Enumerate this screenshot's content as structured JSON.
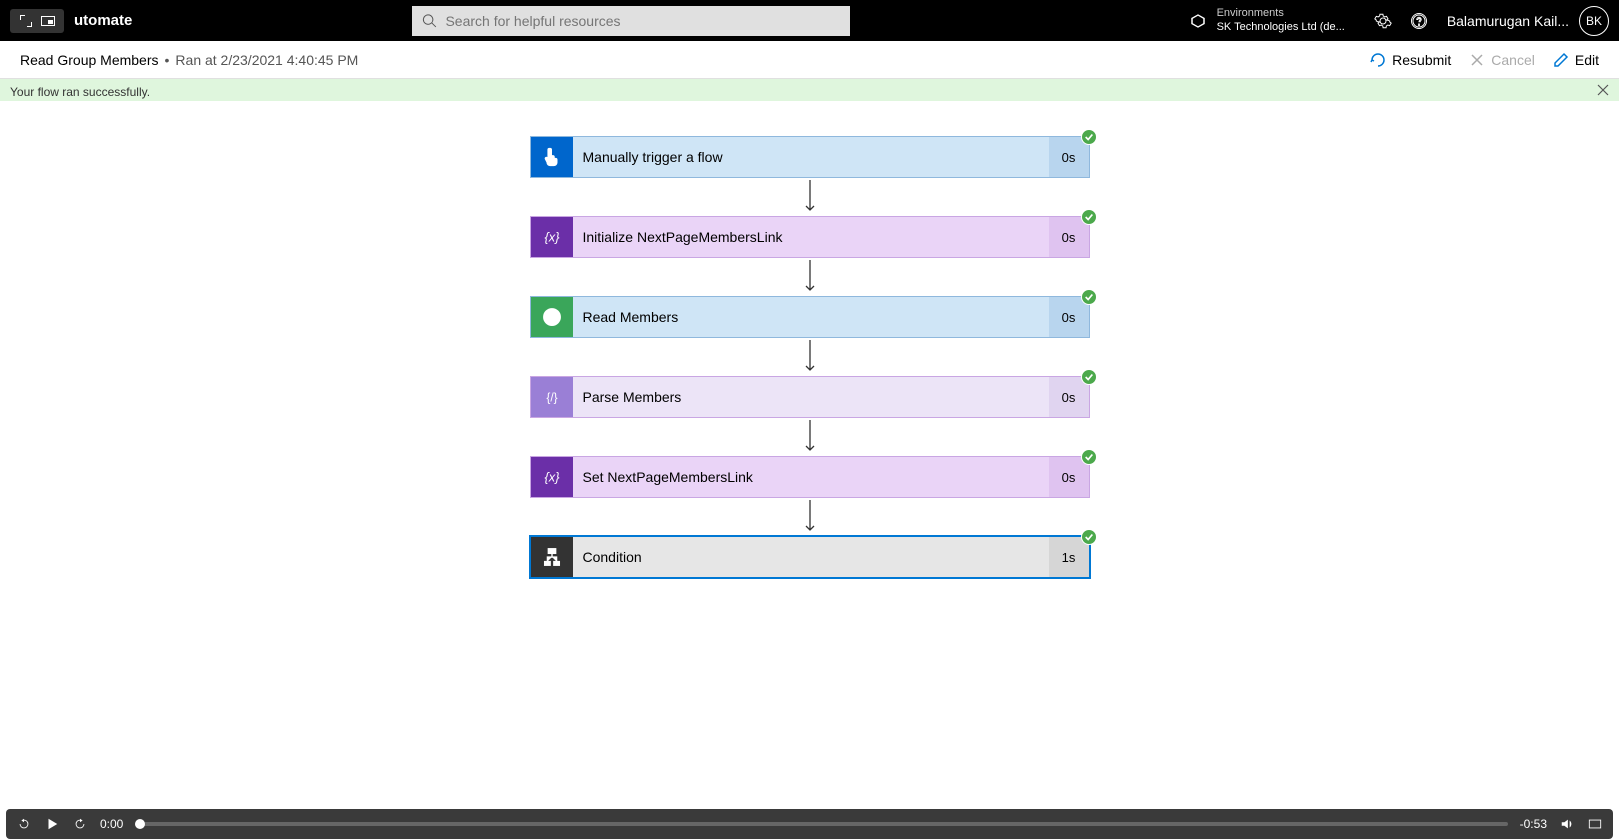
{
  "header": {
    "app_name": "utomate",
    "search_placeholder": "Search for helpful resources",
    "env_label": "Environments",
    "env_name": "SK Technologies Ltd (de...",
    "user_name": "Balamurugan Kail...",
    "user_initials": "BK"
  },
  "subheader": {
    "flow_name": "Read Group Members",
    "separator": "•",
    "run_info": "Ran at 2/23/2021 4:40:45 PM",
    "resubmit": "Resubmit",
    "cancel": "Cancel",
    "edit": "Edit"
  },
  "banner": {
    "message": "Your flow ran successfully."
  },
  "steps": [
    {
      "title": "Manually trigger a flow",
      "time": "0s",
      "theme": "blue",
      "icon": "finger",
      "selected": false
    },
    {
      "title": "Initialize NextPageMembersLink",
      "time": "0s",
      "theme": "purple",
      "icon": "variable",
      "selected": false
    },
    {
      "title": "Read Members",
      "time": "0s",
      "theme": "green",
      "icon": "globe",
      "selected": false
    },
    {
      "title": "Parse Members",
      "time": "0s",
      "theme": "purplelight",
      "icon": "json",
      "selected": false
    },
    {
      "title": "Set NextPageMembersLink",
      "time": "0s",
      "theme": "purple",
      "icon": "variable",
      "selected": false
    },
    {
      "title": "Condition",
      "time": "1s",
      "theme": "gray",
      "icon": "condition",
      "selected": true
    }
  ],
  "player": {
    "current_time": "0:00",
    "remaining": "-0:53"
  }
}
